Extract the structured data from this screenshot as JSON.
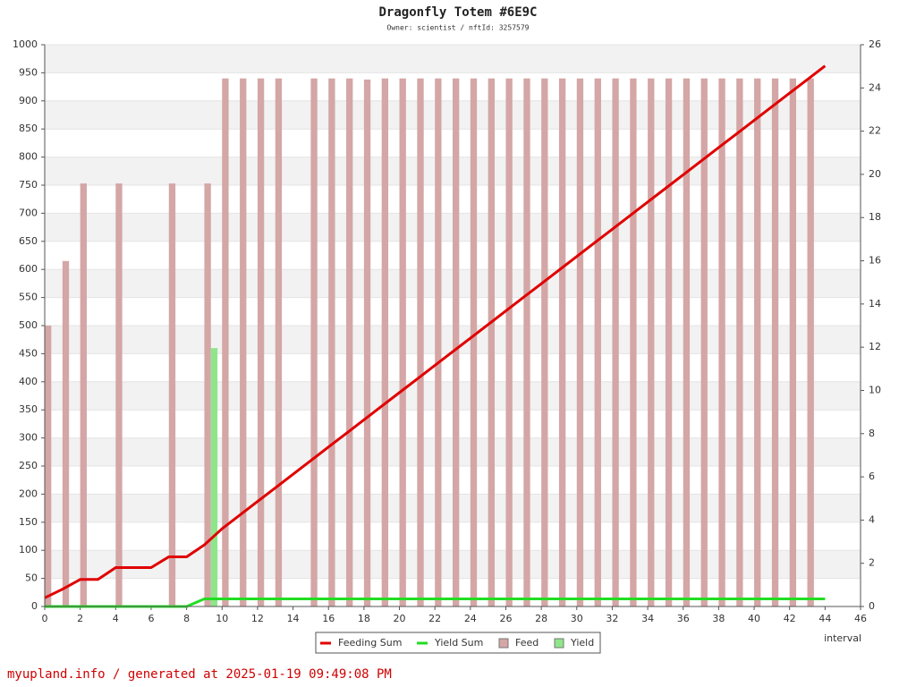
{
  "chart_data": {
    "type": "combo",
    "title": "Dragonfly Totem #6E9C",
    "subtitle": "Owner: scientist / nftId: 3257579",
    "x_label": "interval",
    "footer": "myupland.info / generated at 2025-01-19 09:49:08 PM",
    "x": [
      0,
      1,
      2,
      3,
      4,
      5,
      6,
      7,
      8,
      9,
      10,
      11,
      12,
      13,
      14,
      15,
      16,
      17,
      18,
      19,
      20,
      21,
      22,
      23,
      24,
      25,
      26,
      27,
      28,
      29,
      30,
      31,
      32,
      33,
      34,
      35,
      36,
      37,
      38,
      39,
      40,
      41,
      42,
      43,
      44
    ],
    "xlim": [
      0,
      46
    ],
    "xticks": [
      0,
      2,
      4,
      6,
      8,
      10,
      12,
      14,
      16,
      18,
      20,
      22,
      24,
      26,
      28,
      30,
      32,
      34,
      36,
      38,
      40,
      42,
      44,
      46
    ],
    "ylim": [
      0,
      1000
    ],
    "yticks": [
      0,
      50,
      100,
      150,
      200,
      250,
      300,
      350,
      400,
      450,
      500,
      550,
      600,
      650,
      700,
      750,
      800,
      850,
      900,
      950,
      1000
    ],
    "y2lim": [
      0,
      26
    ],
    "y2ticks": [
      0,
      2,
      4,
      6,
      8,
      10,
      12,
      14,
      16,
      18,
      20,
      22,
      24,
      26
    ],
    "grid": true,
    "series": [
      {
        "name": "Feeding Sum",
        "type": "line",
        "axis": "y2",
        "color": "#e00000",
        "values": [
          0.4,
          0.8,
          1.25,
          1.25,
          1.8,
          1.8,
          1.8,
          2.3,
          2.3,
          2.85,
          3.6,
          4.23,
          4.86,
          5.49,
          6.12,
          6.75,
          7.38,
          8.01,
          8.64,
          9.27,
          9.9,
          10.53,
          11.16,
          11.79,
          12.42,
          13.05,
          13.68,
          14.31,
          14.94,
          15.57,
          16.2,
          16.83,
          17.46,
          18.09,
          18.72,
          19.35,
          19.98,
          20.61,
          21.24,
          21.87,
          22.5,
          23.13,
          23.76,
          24.39,
          25.02
        ]
      },
      {
        "name": "Yield Sum",
        "type": "line",
        "axis": "y2",
        "color": "#22dd22",
        "values": [
          0,
          0,
          0,
          0,
          0,
          0,
          0,
          0,
          0,
          0.35,
          0.35,
          0.35,
          0.35,
          0.35,
          0.35,
          0.35,
          0.35,
          0.35,
          0.35,
          0.35,
          0.35,
          0.35,
          0.35,
          0.35,
          0.35,
          0.35,
          0.35,
          0.35,
          0.35,
          0.35,
          0.35,
          0.35,
          0.35,
          0.35,
          0.35,
          0.35,
          0.35,
          0.35,
          0.35,
          0.35,
          0.35,
          0.35,
          0.35,
          0.35,
          0.35
        ]
      },
      {
        "name": "Feed",
        "type": "bar",
        "color": "#d4a6a6",
        "values": [
          500,
          615,
          753,
          null,
          753,
          null,
          null,
          753,
          null,
          753,
          940,
          940,
          940,
          940,
          null,
          940,
          940,
          940,
          938,
          940,
          940,
          940,
          940,
          940,
          940,
          940,
          940,
          940,
          940,
          940,
          940,
          940,
          940,
          940,
          940,
          940,
          940,
          940,
          940,
          940,
          940,
          940,
          940,
          940,
          null
        ]
      },
      {
        "name": "Yield",
        "type": "bar",
        "color": "#8ee68a",
        "values": [
          null,
          null,
          null,
          null,
          null,
          null,
          null,
          null,
          null,
          460,
          null,
          null,
          null,
          null,
          null,
          null,
          null,
          null,
          null,
          null,
          null,
          null,
          null,
          null,
          null,
          null,
          null,
          null,
          null,
          null,
          null,
          null,
          null,
          null,
          null,
          null,
          null,
          null,
          null,
          null,
          null,
          null,
          null,
          null,
          null
        ]
      }
    ]
  }
}
